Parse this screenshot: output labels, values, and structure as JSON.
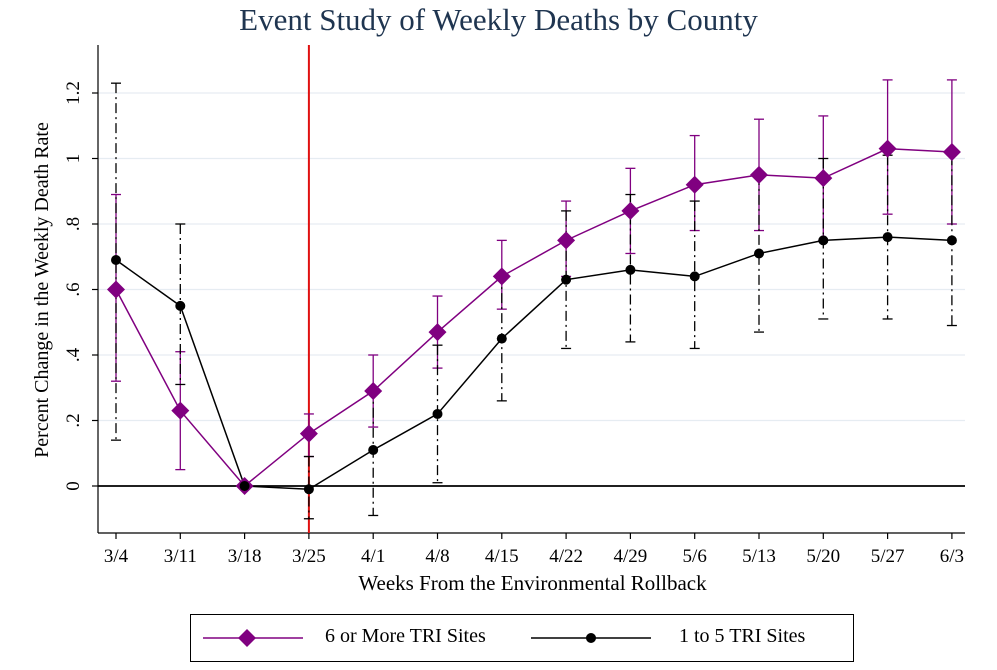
{
  "chart_data": {
    "type": "line",
    "title": "Event Study of Weekly Deaths by County",
    "xlabel": "Weeks From the Environmental Rollback",
    "ylabel": "Percent Change in the Weekly Death Rate",
    "categories": [
      "3/4",
      "3/11",
      "3/18",
      "3/25",
      "4/1",
      "4/8",
      "4/15",
      "4/22",
      "4/29",
      "5/6",
      "5/13",
      "5/20",
      "5/27",
      "6/3"
    ],
    "ylim": [
      -0.15,
      1.35
    ],
    "yticks": [
      0,
      0.2,
      0.4,
      0.6,
      0.8,
      1,
      1.2
    ],
    "ytick_labels": [
      "0",
      ".2",
      ".4",
      ".6",
      ".8",
      "1",
      "1.2"
    ],
    "grid": true,
    "reference_lines": {
      "vertical_at": "3/25",
      "vertical_color": "#e01010",
      "horizontal_at": 0
    },
    "legend_position": "bottom",
    "series": [
      {
        "name": "6 or More TRI Sites",
        "color": "#800080",
        "marker": "diamond",
        "errorbar_style": "solid",
        "values": [
          0.6,
          0.23,
          0.0,
          0.16,
          0.29,
          0.47,
          0.64,
          0.75,
          0.84,
          0.92,
          0.95,
          0.94,
          1.03,
          1.02
        ],
        "ci_low": [
          0.32,
          0.05,
          null,
          0.09,
          0.18,
          0.36,
          0.54,
          0.64,
          0.71,
          0.78,
          0.78,
          0.75,
          0.83,
          0.8
        ],
        "ci_high": [
          0.89,
          0.41,
          null,
          0.22,
          0.4,
          0.58,
          0.75,
          0.87,
          0.97,
          1.07,
          1.12,
          1.13,
          1.24,
          1.24
        ]
      },
      {
        "name": "1 to 5 TRI Sites",
        "color": "#000000",
        "marker": "circle",
        "errorbar_style": "dashdot",
        "values": [
          0.69,
          0.55,
          0.0,
          -0.01,
          0.11,
          0.22,
          0.45,
          0.63,
          0.66,
          0.64,
          0.71,
          0.75,
          0.76,
          0.75
        ],
        "ci_low": [
          0.14,
          0.31,
          null,
          -0.1,
          -0.09,
          0.01,
          0.26,
          0.42,
          0.44,
          0.42,
          0.47,
          0.51,
          0.51,
          0.49
        ],
        "ci_high": [
          1.23,
          0.8,
          null,
          0.09,
          0.3,
          0.43,
          0.65,
          0.84,
          0.89,
          0.87,
          0.95,
          1.0,
          1.01,
          1.01
        ]
      }
    ]
  }
}
